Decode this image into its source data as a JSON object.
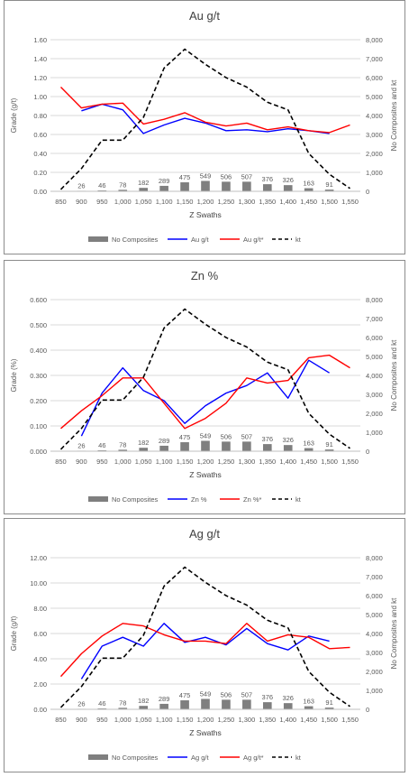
{
  "colors": {
    "bars": "#7f7f7f",
    "blue": "#0000ff",
    "red": "#ff0000",
    "kt": "#000000",
    "grid": "#d9d9d9",
    "axis_text": "#595959",
    "label_text": "#404040",
    "border": "#8c8c8c"
  },
  "legend_labels": {
    "bars": "No Composites",
    "kt": "kt"
  },
  "chart_data": [
    {
      "type": "combo",
      "title": "Au g/t",
      "xlabel": "Z Swaths",
      "ylabel": "Grade (g/t)",
      "y2label": "No Composites and kt",
      "categories": [
        "850",
        "900",
        "950",
        "1,000",
        "1,050",
        "1,100",
        "1,150",
        "1,200",
        "1,250",
        "1,300",
        "1,350",
        "1,400",
        "1,450",
        "1,500",
        "1,550"
      ],
      "y_ticks": [
        "0.00",
        "0.20",
        "0.40",
        "0.60",
        "0.80",
        "1.00",
        "1.20",
        "1.40",
        "1.60"
      ],
      "ylim": [
        0,
        1.6
      ],
      "y2_ticks": [
        "0",
        "1,000",
        "2,000",
        "3,000",
        "4,000",
        "5,000",
        "6,000",
        "7,000",
        "8,000"
      ],
      "y2lim": [
        0,
        8000
      ],
      "grid": true,
      "legend_position": "bottom",
      "bars": {
        "name": "No Composites",
        "values": [
          null,
          26,
          46,
          78,
          182,
          289,
          475,
          549,
          506,
          507,
          376,
          326,
          163,
          91,
          null
        ],
        "labels": [
          "",
          "26",
          "46",
          "78",
          "182",
          "289",
          "475",
          "549",
          "506",
          "507",
          "376",
          "326",
          "163",
          "91",
          ""
        ]
      },
      "series": [
        {
          "name": "Au g/t",
          "color": "blue",
          "axis": "y",
          "values": [
            null,
            0.85,
            0.92,
            0.86,
            0.61,
            0.7,
            0.77,
            0.72,
            0.64,
            0.65,
            0.63,
            0.66,
            0.64,
            0.61,
            null
          ]
        },
        {
          "name": "Au g/t*",
          "color": "red",
          "axis": "y",
          "values": [
            1.1,
            0.88,
            0.92,
            0.93,
            0.71,
            0.76,
            0.83,
            0.73,
            0.69,
            0.72,
            0.65,
            0.68,
            0.64,
            0.62,
            0.7
          ]
        },
        {
          "name": "kt",
          "color": "kt",
          "axis": "y2",
          "dashed": true,
          "values": [
            100,
            1200,
            2700,
            2700,
            3900,
            6500,
            7500,
            6700,
            6000,
            5500,
            4700,
            4300,
            2000,
            900,
            150
          ]
        }
      ]
    },
    {
      "type": "combo",
      "title": "Zn %",
      "xlabel": "Z Swaths",
      "ylabel": "Grade (%)",
      "y2label": "No Composites and kt",
      "categories": [
        "850",
        "900",
        "950",
        "1,000",
        "1,050",
        "1,100",
        "1,150",
        "1,200",
        "1,250",
        "1,300",
        "1,350",
        "1,400",
        "1,450",
        "1,500",
        "1,550"
      ],
      "y_ticks": [
        "0.000",
        "0.100",
        "0.200",
        "0.300",
        "0.400",
        "0.500",
        "0.600"
      ],
      "ylim": [
        0,
        0.6
      ],
      "y2_ticks": [
        "0",
        "1,000",
        "2,000",
        "3,000",
        "4,000",
        "5,000",
        "6,000",
        "7,000",
        "8,000"
      ],
      "y2lim": [
        0,
        8000
      ],
      "grid": true,
      "legend_position": "bottom",
      "bars": {
        "name": "No Composites",
        "values": [
          null,
          26,
          46,
          78,
          182,
          289,
          475,
          549,
          506,
          507,
          376,
          326,
          163,
          91,
          null
        ],
        "labels": [
          "",
          "26",
          "46",
          "78",
          "182",
          "289",
          "475",
          "549",
          "506",
          "507",
          "376",
          "326",
          "163",
          "91",
          ""
        ]
      },
      "series": [
        {
          "name": "Zn %",
          "color": "blue",
          "axis": "y",
          "values": [
            null,
            0.06,
            0.23,
            0.33,
            0.24,
            0.2,
            0.11,
            0.18,
            0.23,
            0.26,
            0.31,
            0.21,
            0.36,
            0.31,
            null
          ]
        },
        {
          "name": "Zn %*",
          "color": "red",
          "axis": "y",
          "values": [
            0.09,
            0.16,
            0.22,
            0.29,
            0.29,
            0.19,
            0.09,
            0.13,
            0.19,
            0.29,
            0.27,
            0.28,
            0.37,
            0.38,
            0.33
          ]
        },
        {
          "name": "kt",
          "color": "kt",
          "axis": "y2",
          "dashed": true,
          "values": [
            100,
            1200,
            2700,
            2700,
            3900,
            6500,
            7500,
            6700,
            6000,
            5500,
            4700,
            4300,
            2000,
            900,
            150
          ]
        }
      ]
    },
    {
      "type": "combo",
      "title": "Ag g/t",
      "xlabel": "Z Swaths",
      "ylabel": "Grade (g/t)",
      "y2label": "No Composites and kt",
      "categories": [
        "850",
        "900",
        "950",
        "1,000",
        "1,050",
        "1,100",
        "1,150",
        "1,200",
        "1,250",
        "1,300",
        "1,350",
        "1,400",
        "1,450",
        "1,500",
        "1,550"
      ],
      "y_ticks": [
        "0.00",
        "2.00",
        "4.00",
        "6.00",
        "8.00",
        "10.00",
        "12.00"
      ],
      "ylim": [
        0,
        12
      ],
      "y2_ticks": [
        "0",
        "1,000",
        "2,000",
        "3,000",
        "4,000",
        "5,000",
        "6,000",
        "7,000",
        "8,000"
      ],
      "y2lim": [
        0,
        8000
      ],
      "grid": true,
      "legend_position": "bottom",
      "bars": {
        "name": "No Composites",
        "values": [
          null,
          26,
          46,
          78,
          182,
          289,
          475,
          549,
          506,
          507,
          376,
          326,
          163,
          91,
          null
        ],
        "labels": [
          "",
          "26",
          "46",
          "78",
          "182",
          "289",
          "475",
          "549",
          "506",
          "507",
          "376",
          "326",
          "163",
          "91",
          ""
        ]
      },
      "series": [
        {
          "name": "Ag g/t",
          "color": "blue",
          "axis": "y",
          "values": [
            null,
            2.4,
            5.0,
            5.7,
            5.0,
            6.8,
            5.3,
            5.7,
            5.1,
            6.4,
            5.2,
            4.7,
            5.8,
            5.4,
            null
          ]
        },
        {
          "name": "Ag g/t*",
          "color": "red",
          "axis": "y",
          "values": [
            2.6,
            4.4,
            5.8,
            6.8,
            6.6,
            5.9,
            5.4,
            5.4,
            5.2,
            6.8,
            5.4,
            5.9,
            5.7,
            4.8,
            4.9
          ]
        },
        {
          "name": "kt",
          "color": "kt",
          "axis": "y2",
          "dashed": true,
          "values": [
            100,
            1200,
            2700,
            2700,
            3900,
            6500,
            7500,
            6700,
            6000,
            5500,
            4700,
            4300,
            2000,
            900,
            150
          ]
        }
      ]
    }
  ]
}
